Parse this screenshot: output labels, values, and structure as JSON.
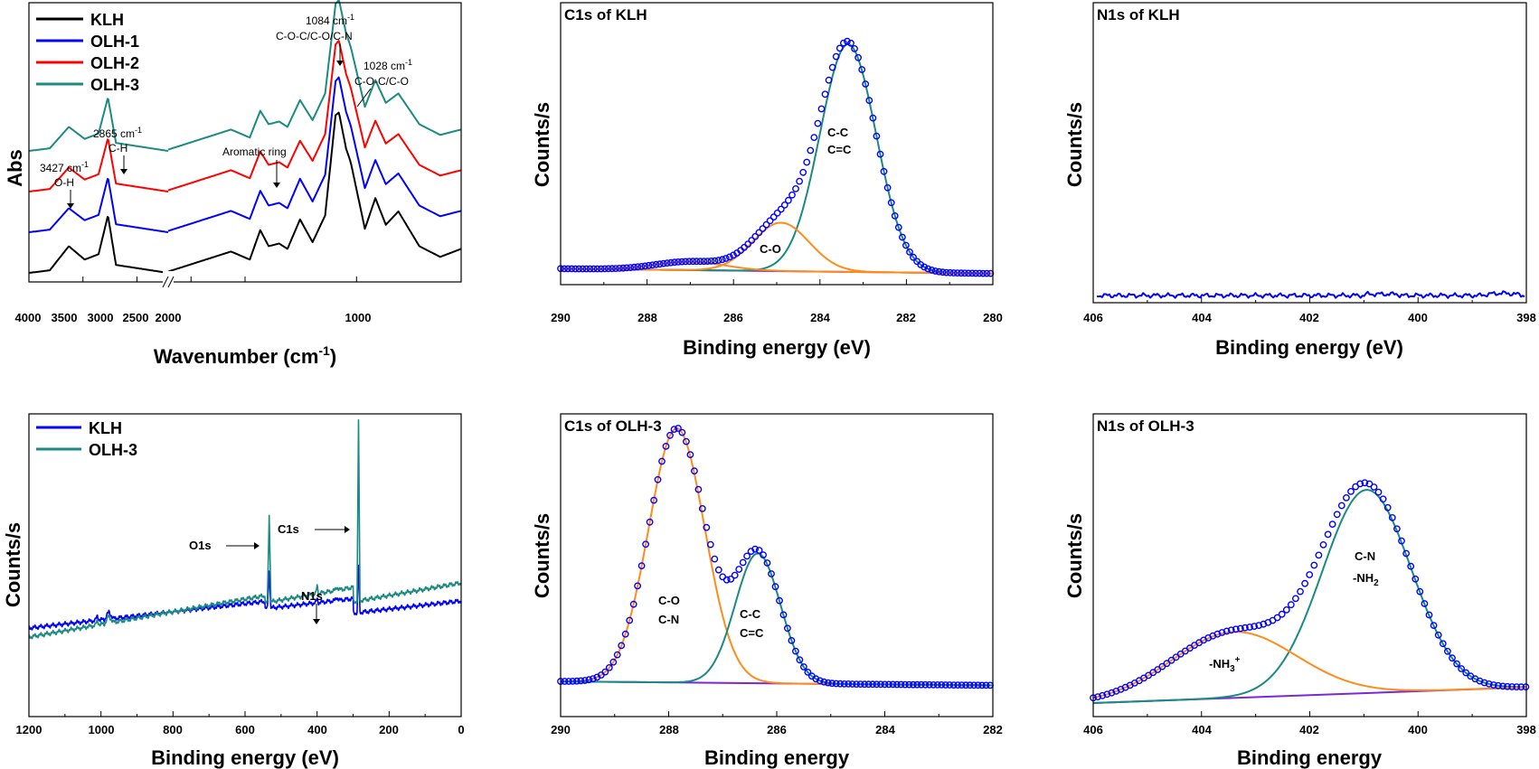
{
  "colors": {
    "black": "#000000",
    "blue": "#0000ff",
    "red": "#ff0000",
    "teal": "#1a8a82",
    "orange": "#ff8c1a",
    "purple": "#7b26d9"
  },
  "chart_data": [
    {
      "id": "ftir",
      "type": "line",
      "title": "",
      "xlabel": "Wavenumber (cm-1)",
      "ylabel": "Abs",
      "xlim": [
        4000,
        500
      ],
      "x_break": [
        2000,
        1900
      ],
      "x_ticks": [
        "4000",
        "3500",
        "3000",
        "2500",
        "2000",
        "1000"
      ],
      "legend": [
        "KLH",
        "OLH-1",
        "OLH-2",
        "OLH-3"
      ],
      "legend_position": "top-left",
      "series": [
        {
          "name": "KLH",
          "color": "#000000",
          "offset": 0,
          "points": [
            [
              4000,
              0.02
            ],
            [
              3700,
              0.04
            ],
            [
              3427,
              0.22
            ],
            [
              3200,
              0.12
            ],
            [
              3000,
              0.16
            ],
            [
              2865,
              0.45
            ],
            [
              2750,
              0.08
            ],
            [
              2000,
              0.02
            ],
            [
              1900,
              0.03
            ],
            [
              1720,
              0.12
            ],
            [
              1600,
              0.18
            ],
            [
              1510,
              0.12
            ],
            [
              1460,
              0.34
            ],
            [
              1420,
              0.22
            ],
            [
              1370,
              0.24
            ],
            [
              1330,
              0.2
            ],
            [
              1270,
              0.42
            ],
            [
              1210,
              0.25
            ],
            [
              1150,
              0.45
            ],
            [
              1100,
              1.2
            ],
            [
              1084,
              1.22
            ],
            [
              1050,
              0.95
            ],
            [
              1028,
              0.85
            ],
            [
              960,
              0.35
            ],
            [
              910,
              0.58
            ],
            [
              860,
              0.38
            ],
            [
              800,
              0.48
            ],
            [
              700,
              0.22
            ],
            [
              600,
              0.14
            ],
            [
              500,
              0.2
            ]
          ]
        },
        {
          "name": "OLH-1",
          "color": "#0000ff",
          "offset": 0.32,
          "points": [
            [
              4000,
              0.02
            ],
            [
              3700,
              0.04
            ],
            [
              3427,
              0.2
            ],
            [
              3200,
              0.11
            ],
            [
              3000,
              0.15
            ],
            [
              2865,
              0.43
            ],
            [
              2750,
              0.08
            ],
            [
              2000,
              0.02
            ],
            [
              1900,
              0.03
            ],
            [
              1720,
              0.12
            ],
            [
              1600,
              0.18
            ],
            [
              1510,
              0.12
            ],
            [
              1460,
              0.33
            ],
            [
              1420,
              0.22
            ],
            [
              1370,
              0.24
            ],
            [
              1330,
              0.2
            ],
            [
              1270,
              0.42
            ],
            [
              1210,
              0.25
            ],
            [
              1150,
              0.45
            ],
            [
              1100,
              1.15
            ],
            [
              1084,
              1.18
            ],
            [
              1050,
              0.92
            ],
            [
              1028,
              0.82
            ],
            [
              960,
              0.35
            ],
            [
              910,
              0.56
            ],
            [
              860,
              0.38
            ],
            [
              800,
              0.46
            ],
            [
              700,
              0.22
            ],
            [
              600,
              0.14
            ],
            [
              500,
              0.18
            ]
          ]
        },
        {
          "name": "OLH-2",
          "color": "#ff0000",
          "offset": 0.62,
          "points": [
            [
              4000,
              0.02
            ],
            [
              3700,
              0.04
            ],
            [
              3427,
              0.2
            ],
            [
              3200,
              0.11
            ],
            [
              3000,
              0.15
            ],
            [
              2865,
              0.42
            ],
            [
              2750,
              0.08
            ],
            [
              2000,
              0.02
            ],
            [
              1900,
              0.03
            ],
            [
              1720,
              0.12
            ],
            [
              1600,
              0.18
            ],
            [
              1510,
              0.12
            ],
            [
              1460,
              0.32
            ],
            [
              1420,
              0.22
            ],
            [
              1370,
              0.24
            ],
            [
              1330,
              0.2
            ],
            [
              1270,
              0.4
            ],
            [
              1210,
              0.25
            ],
            [
              1150,
              0.45
            ],
            [
              1100,
              1.12
            ],
            [
              1084,
              1.15
            ],
            [
              1050,
              0.9
            ],
            [
              1028,
              0.8
            ],
            [
              960,
              0.35
            ],
            [
              910,
              0.55
            ],
            [
              860,
              0.38
            ],
            [
              800,
              0.45
            ],
            [
              700,
              0.22
            ],
            [
              600,
              0.14
            ],
            [
              500,
              0.18
            ]
          ]
        },
        {
          "name": "OLH-3",
          "color": "#1a8a82",
          "offset": 0.92,
          "points": [
            [
              4000,
              0.02
            ],
            [
              3700,
              0.04
            ],
            [
              3427,
              0.2
            ],
            [
              3200,
              0.11
            ],
            [
              3000,
              0.15
            ],
            [
              2865,
              0.42
            ],
            [
              2750,
              0.08
            ],
            [
              2000,
              0.02
            ],
            [
              1900,
              0.03
            ],
            [
              1720,
              0.12
            ],
            [
              1600,
              0.18
            ],
            [
              1510,
              0.12
            ],
            [
              1460,
              0.32
            ],
            [
              1420,
              0.22
            ],
            [
              1370,
              0.24
            ],
            [
              1330,
              0.2
            ],
            [
              1270,
              0.4
            ],
            [
              1210,
              0.25
            ],
            [
              1150,
              0.45
            ],
            [
              1100,
              1.12
            ],
            [
              1084,
              1.15
            ],
            [
              1050,
              0.9
            ],
            [
              1028,
              0.8
            ],
            [
              960,
              0.35
            ],
            [
              910,
              0.55
            ],
            [
              860,
              0.38
            ],
            [
              800,
              0.45
            ],
            [
              700,
              0.22
            ],
            [
              600,
              0.14
            ],
            [
              500,
              0.18
            ]
          ]
        }
      ],
      "annotations": [
        {
          "label": "3427 cm-1",
          "sub": "O-H",
          "x": 3427
        },
        {
          "label": "2865 cm-1",
          "sub": "C-H",
          "x": 2865
        },
        {
          "label": "Aromatic ring",
          "sub": "",
          "x": 1370
        },
        {
          "label": "1084 cm-1",
          "sub": "C-O-C/C-O/C-N",
          "x": 1084
        },
        {
          "label": "1028 cm-1",
          "sub": "C-O-C/C-O",
          "x": 1028
        }
      ]
    },
    {
      "id": "c1s-klh",
      "type": "line",
      "title": "C1s of KLH",
      "xlabel": "Binding energy (eV)",
      "ylabel": "Counts/s",
      "xlim": [
        290,
        280
      ],
      "x_ticks": [
        "290",
        "288",
        "286",
        "284",
        "282",
        "280"
      ],
      "ylim": [
        0,
        1
      ],
      "baseline": [
        [
          290,
          0.01
        ],
        [
          280,
          -0.01
        ]
      ],
      "peaks": [
        {
          "label": "C-C\nC=C",
          "center": 283.35,
          "amplitude": 0.94,
          "sigma": 0.65,
          "color": "#1a8a82"
        },
        {
          "label": "C-O",
          "center": 284.9,
          "amplitude": 0.2,
          "sigma": 0.65,
          "color": "#ff8c1a"
        },
        {
          "label": "",
          "center": 287.0,
          "amplitude": 0.035,
          "sigma": 0.8,
          "color": "#ff8c1a"
        }
      ],
      "data_points": "blue circles following the envelope"
    },
    {
      "id": "n1s-klh",
      "type": "line",
      "title": "N1s of KLH",
      "xlabel": "Binding energy (eV)",
      "ylabel": "Counts/s",
      "xlim": [
        406,
        398
      ],
      "x_ticks": [
        "406",
        "404",
        "402",
        "400",
        "398"
      ],
      "series": [
        {
          "name": "N1s KLH",
          "color": "#0000ff",
          "level": 0.04
        }
      ]
    },
    {
      "id": "survey",
      "type": "line",
      "title": "",
      "xlabel": "Binding energy (eV)",
      "ylabel": "Counts/s",
      "xlim": [
        1200,
        0
      ],
      "x_ticks": [
        "1200",
        "1000",
        "800",
        "600",
        "400",
        "200",
        "0"
      ],
      "legend": [
        "KLH",
        "OLH-3"
      ],
      "legend_position": "top-left",
      "peak_labels": [
        "O1s",
        "C1s",
        "N1s"
      ],
      "series": [
        {
          "name": "KLH",
          "color": "#0000ff",
          "offset": 0.0
        },
        {
          "name": "OLH-3",
          "color": "#1a8a82",
          "offset": 0.16
        }
      ]
    },
    {
      "id": "c1s-olh3",
      "type": "line",
      "title": "C1s of OLH-3",
      "xlabel": "Binding energy",
      "ylabel": "Counts/s",
      "xlim": [
        290,
        282
      ],
      "x_ticks": [
        "290",
        "288",
        "286",
        "284",
        "282"
      ],
      "ylim": [
        0,
        1
      ],
      "baseline": [
        [
          290,
          0.01
        ],
        [
          282,
          -0.005
        ]
      ],
      "peaks": [
        {
          "label": "C-O\nC-N",
          "center": 287.85,
          "amplitude": 0.96,
          "sigma": 0.52,
          "color": "#ff8c1a"
        },
        {
          "label": "C-C\nC=C",
          "center": 286.35,
          "amplitude": 0.49,
          "sigma": 0.42,
          "color": "#1a8a82"
        }
      ],
      "data_points": "blue circles following the envelope"
    },
    {
      "id": "n1s-olh3",
      "type": "line",
      "title": "N1s of OLH-3",
      "xlabel": "Binding energy",
      "ylabel": "Counts/s",
      "xlim": [
        406,
        398
      ],
      "x_ticks": [
        "406",
        "404",
        "402",
        "400",
        "398"
      ],
      "ylim": [
        0,
        1
      ],
      "baseline": [
        [
          406,
          0.0
        ],
        [
          398,
          0.06
        ]
      ],
      "peaks": [
        {
          "label": "C-N\n-NH2",
          "center": 400.95,
          "amplitude": 0.77,
          "sigma": 0.82,
          "color": "#1a8a82"
        },
        {
          "label": "-NH3+",
          "center": 403.4,
          "amplitude": 0.25,
          "sigma": 1.15,
          "color": "#ff8c1a"
        }
      ],
      "data_points": "blue circles following the envelope"
    }
  ]
}
